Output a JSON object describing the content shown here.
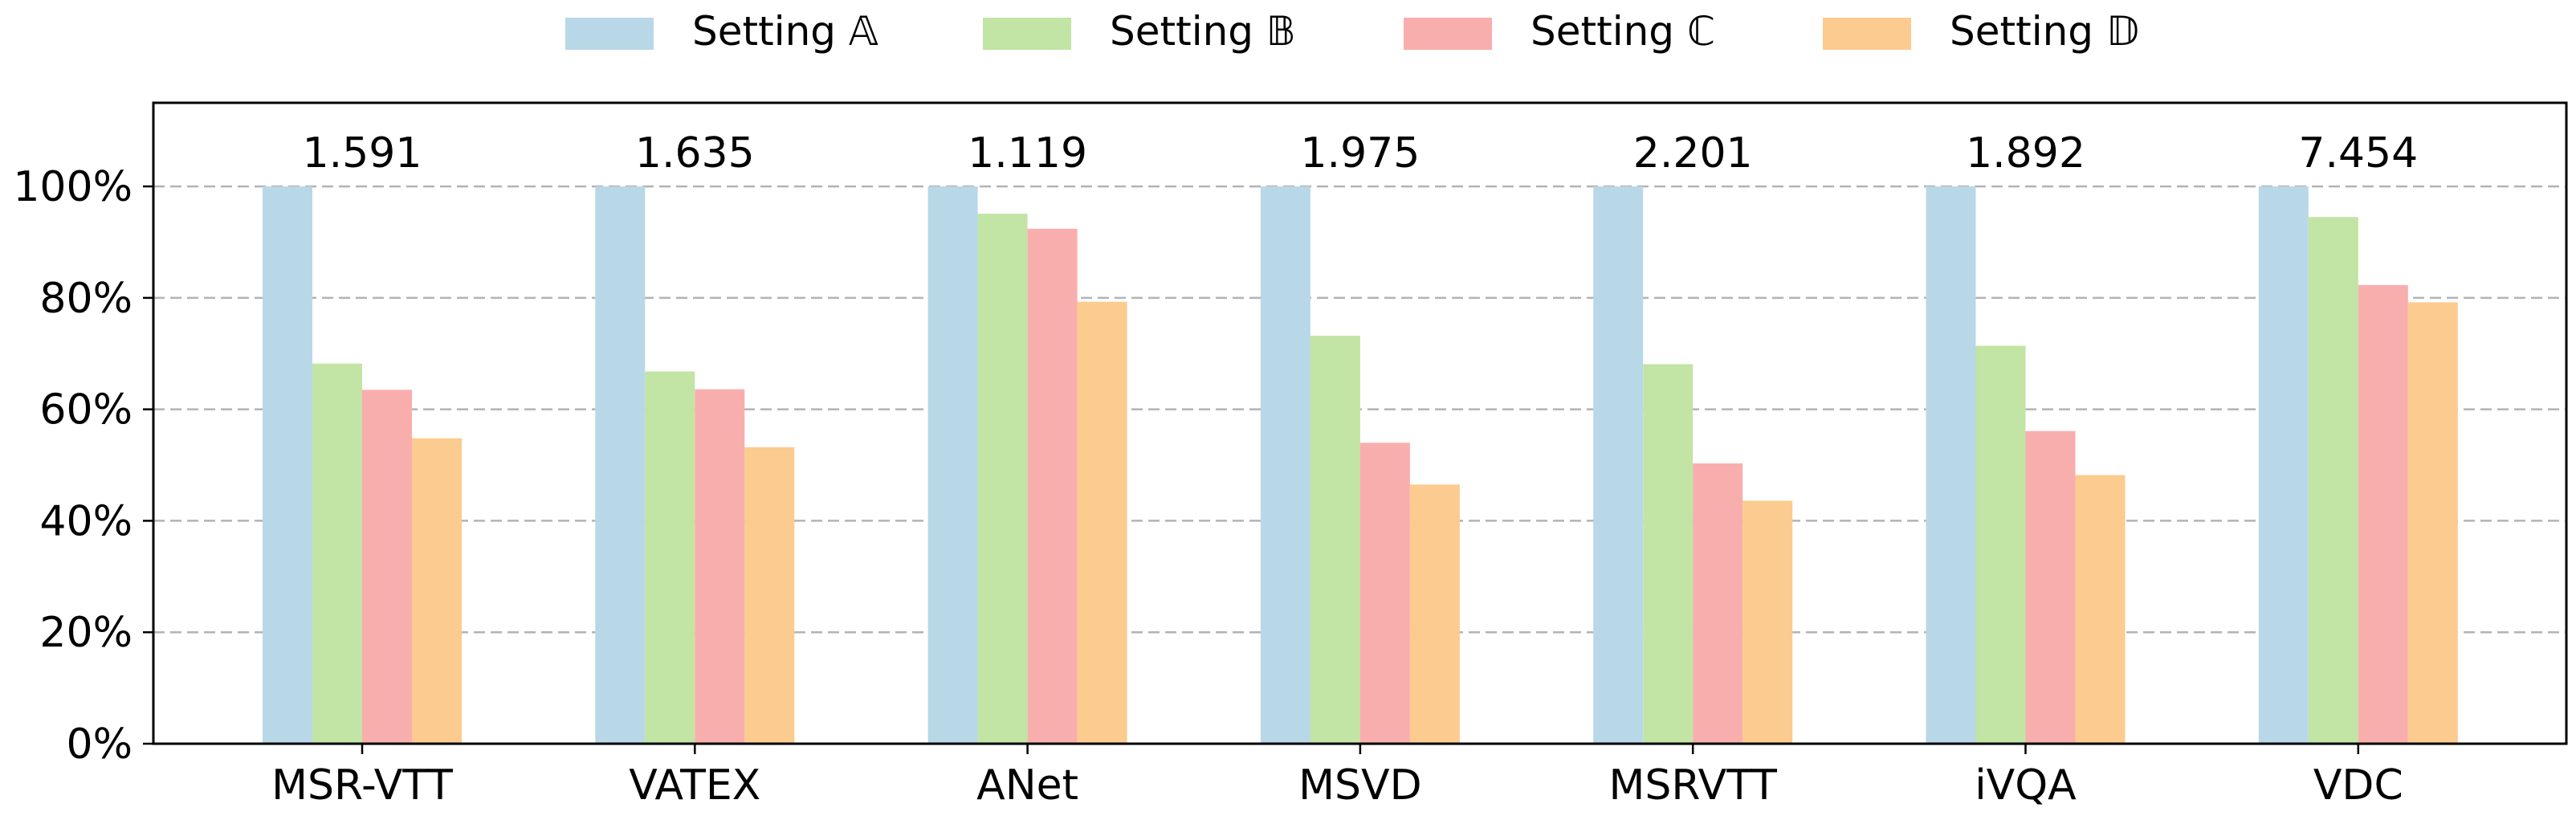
{
  "chart_data": {
    "type": "bar",
    "categories": [
      "MSR-VTT",
      "VATEX",
      "ANet",
      "MSVD",
      "MSRVTT",
      "iVQA",
      "VDC"
    ],
    "series": [
      {
        "name": "Setting 𝔸",
        "color": "#b8d8e8",
        "values": [
          100,
          100,
          100,
          100,
          100,
          100,
          100
        ]
      },
      {
        "name": "Setting 𝔹",
        "color": "#c2e4a4",
        "values": [
          68.2,
          66.8,
          95.1,
          73.2,
          68.1,
          71.4,
          94.5
        ]
      },
      {
        "name": "Setting ℂ",
        "color": "#f9aeae",
        "values": [
          63.5,
          63.6,
          92.4,
          54.0,
          50.3,
          56.1,
          82.3
        ]
      },
      {
        "name": "Setting 𝔻",
        "color": "#fccb8f",
        "values": [
          54.8,
          53.2,
          79.3,
          46.5,
          43.6,
          48.2,
          79.2
        ]
      }
    ],
    "annotations": [
      "1.591",
      "1.635",
      "1.119",
      "1.975",
      "2.201",
      "1.892",
      "7.454"
    ],
    "y_ticks": [
      "0%",
      "20%",
      "40%",
      "60%",
      "80%",
      "100%"
    ],
    "ylim": [
      0,
      115
    ],
    "grid": "horizontal dashed",
    "legend_position": "top-center"
  }
}
